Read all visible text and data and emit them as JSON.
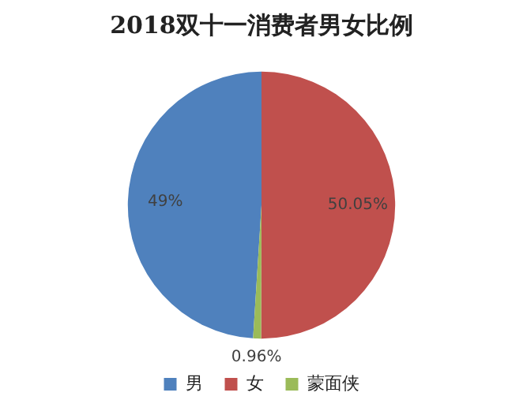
{
  "chart_data": {
    "type": "pie",
    "title": "2018双十一消费者男女比例",
    "categories": [
      "男",
      "女",
      "蒙面侠"
    ],
    "values": [
      49,
      50.05,
      0.96
    ],
    "colors": [
      "#4f81bd",
      "#c0504d",
      "#9bbb59"
    ],
    "value_labels": [
      "49%",
      "50.05%",
      "0.96%"
    ],
    "legend": "bottom"
  }
}
